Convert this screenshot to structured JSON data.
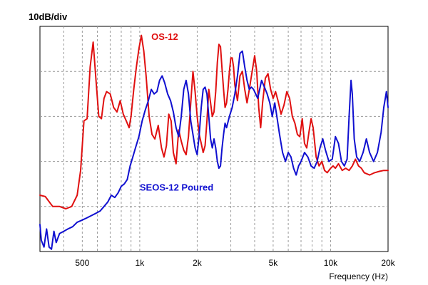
{
  "chart_data": {
    "type": "line",
    "scale_label": "10dB/div",
    "xlabel": "Frequency (Hz)",
    "ylabel": "",
    "x_scale": "log",
    "xlim": [
      300,
      20000
    ],
    "ylim": [
      0,
      5
    ],
    "y_units": "divisions (10 dB each)",
    "grid": true,
    "x_ticks": [
      {
        "value": 500,
        "label": "500"
      },
      {
        "value": 1000,
        "label": "1k"
      },
      {
        "value": 2000,
        "label": "2k"
      },
      {
        "value": 5000,
        "label": "5k"
      },
      {
        "value": 10000,
        "label": "10k"
      },
      {
        "value": 20000,
        "label": "20k"
      }
    ],
    "x_minor_grid": [
      400,
      600,
      700,
      800,
      900,
      3000,
      4000,
      6000,
      7000,
      8000,
      9000
    ],
    "series": [
      {
        "name": "OS-12",
        "color": "#e01010",
        "points": [
          [
            300,
            1.25
          ],
          [
            320,
            1.22
          ],
          [
            350,
            1.0
          ],
          [
            380,
            1.0
          ],
          [
            410,
            0.95
          ],
          [
            440,
            1.0
          ],
          [
            470,
            1.25
          ],
          [
            490,
            1.8
          ],
          [
            510,
            2.9
          ],
          [
            530,
            2.95
          ],
          [
            550,
            4.1
          ],
          [
            570,
            4.65
          ],
          [
            590,
            3.8
          ],
          [
            610,
            3.0
          ],
          [
            630,
            2.95
          ],
          [
            650,
            3.4
          ],
          [
            670,
            3.55
          ],
          [
            700,
            3.5
          ],
          [
            730,
            3.2
          ],
          [
            760,
            3.1
          ],
          [
            790,
            3.35
          ],
          [
            820,
            3.05
          ],
          [
            850,
            2.9
          ],
          [
            880,
            2.75
          ],
          [
            900,
            3.0
          ],
          [
            930,
            3.6
          ],
          [
            960,
            4.1
          ],
          [
            990,
            4.5
          ],
          [
            1020,
            4.8
          ],
          [
            1050,
            4.45
          ],
          [
            1080,
            3.9
          ],
          [
            1120,
            3.0
          ],
          [
            1160,
            2.6
          ],
          [
            1200,
            2.5
          ],
          [
            1250,
            2.8
          ],
          [
            1300,
            2.3
          ],
          [
            1340,
            2.1
          ],
          [
            1380,
            2.35
          ],
          [
            1420,
            3.05
          ],
          [
            1460,
            2.9
          ],
          [
            1500,
            2.2
          ],
          [
            1550,
            1.95
          ],
          [
            1600,
            2.7
          ],
          [
            1650,
            2.45
          ],
          [
            1700,
            2.25
          ],
          [
            1750,
            2.15
          ],
          [
            1800,
            2.55
          ],
          [
            1850,
            3.3
          ],
          [
            1900,
            4.0
          ],
          [
            1950,
            3.55
          ],
          [
            2000,
            3.0
          ],
          [
            2050,
            2.6
          ],
          [
            2100,
            2.4
          ],
          [
            2150,
            2.2
          ],
          [
            2200,
            2.35
          ],
          [
            2250,
            2.9
          ],
          [
            2300,
            3.6
          ],
          [
            2350,
            3.3
          ],
          [
            2400,
            3.0
          ],
          [
            2450,
            3.1
          ],
          [
            2500,
            3.55
          ],
          [
            2550,
            4.2
          ],
          [
            2600,
            4.6
          ],
          [
            2650,
            4.55
          ],
          [
            2700,
            4.05
          ],
          [
            2750,
            3.6
          ],
          [
            2800,
            3.2
          ],
          [
            2850,
            3.3
          ],
          [
            2900,
            3.6
          ],
          [
            2950,
            4.0
          ],
          [
            3000,
            4.3
          ],
          [
            3050,
            4.3
          ],
          [
            3100,
            4.1
          ],
          [
            3150,
            3.7
          ],
          [
            3250,
            3.35
          ],
          [
            3350,
            3.9
          ],
          [
            3450,
            4.0
          ],
          [
            3550,
            3.6
          ],
          [
            3650,
            3.3
          ],
          [
            3750,
            3.6
          ],
          [
            3900,
            4.05
          ],
          [
            4000,
            4.35
          ],
          [
            4100,
            4.0
          ],
          [
            4200,
            3.2
          ],
          [
            4300,
            2.75
          ],
          [
            4400,
            3.3
          ],
          [
            4550,
            3.85
          ],
          [
            4700,
            3.95
          ],
          [
            4850,
            3.6
          ],
          [
            5000,
            3.4
          ],
          [
            5150,
            3.55
          ],
          [
            5300,
            3.35
          ],
          [
            5500,
            3.05
          ],
          [
            5700,
            3.25
          ],
          [
            5900,
            3.55
          ],
          [
            6100,
            3.4
          ],
          [
            6300,
            3.0
          ],
          [
            6500,
            2.85
          ],
          [
            6700,
            2.6
          ],
          [
            6900,
            2.55
          ],
          [
            7100,
            2.95
          ],
          [
            7300,
            2.4
          ],
          [
            7500,
            2.3
          ],
          [
            7700,
            2.65
          ],
          [
            7900,
            2.95
          ],
          [
            8100,
            2.75
          ],
          [
            8400,
            2.1
          ],
          [
            8700,
            1.9
          ],
          [
            9000,
            2.0
          ],
          [
            9300,
            1.8
          ],
          [
            9600,
            1.75
          ],
          [
            10000,
            1.85
          ],
          [
            10300,
            1.9
          ],
          [
            10600,
            1.85
          ],
          [
            11000,
            1.95
          ],
          [
            11500,
            1.8
          ],
          [
            12000,
            1.85
          ],
          [
            12500,
            1.8
          ],
          [
            13000,
            1.9
          ],
          [
            13500,
            2.05
          ],
          [
            14000,
            1.9
          ],
          [
            14500,
            1.85
          ],
          [
            15000,
            1.75
          ],
          [
            16000,
            1.7
          ],
          [
            17000,
            1.75
          ],
          [
            18000,
            1.78
          ],
          [
            19000,
            1.8
          ],
          [
            20000,
            1.8
          ]
        ]
      },
      {
        "name": "SEOS-12 Poured",
        "color": "#1010d0",
        "points": [
          [
            300,
            0.6
          ],
          [
            305,
            0.25
          ],
          [
            315,
            0.1
          ],
          [
            325,
            0.5
          ],
          [
            335,
            0.1
          ],
          [
            345,
            0.05
          ],
          [
            355,
            0.45
          ],
          [
            365,
            0.2
          ],
          [
            380,
            0.4
          ],
          [
            400,
            0.45
          ],
          [
            420,
            0.5
          ],
          [
            445,
            0.55
          ],
          [
            470,
            0.65
          ],
          [
            500,
            0.7
          ],
          [
            530,
            0.75
          ],
          [
            560,
            0.8
          ],
          [
            590,
            0.85
          ],
          [
            620,
            0.9
          ],
          [
            650,
            1.0
          ],
          [
            680,
            1.1
          ],
          [
            710,
            1.25
          ],
          [
            740,
            1.2
          ],
          [
            770,
            1.3
          ],
          [
            800,
            1.45
          ],
          [
            830,
            1.5
          ],
          [
            860,
            1.6
          ],
          [
            890,
            1.9
          ],
          [
            920,
            2.1
          ],
          [
            950,
            2.3
          ],
          [
            990,
            2.55
          ],
          [
            1030,
            2.9
          ],
          [
            1070,
            3.15
          ],
          [
            1110,
            3.35
          ],
          [
            1150,
            3.6
          ],
          [
            1190,
            3.5
          ],
          [
            1230,
            3.55
          ],
          [
            1270,
            3.8
          ],
          [
            1310,
            3.9
          ],
          [
            1350,
            3.75
          ],
          [
            1400,
            3.5
          ],
          [
            1450,
            3.35
          ],
          [
            1500,
            3.1
          ],
          [
            1550,
            2.75
          ],
          [
            1600,
            2.55
          ],
          [
            1650,
            3.0
          ],
          [
            1700,
            3.6
          ],
          [
            1750,
            3.8
          ],
          [
            1800,
            3.5
          ],
          [
            1850,
            2.9
          ],
          [
            1900,
            2.6
          ],
          [
            1950,
            2.3
          ],
          [
            2000,
            2.15
          ],
          [
            2050,
            2.6
          ],
          [
            2100,
            3.2
          ],
          [
            2150,
            3.6
          ],
          [
            2200,
            3.65
          ],
          [
            2250,
            3.5
          ],
          [
            2300,
            3.0
          ],
          [
            2350,
            2.5
          ],
          [
            2400,
            2.3
          ],
          [
            2450,
            2.5
          ],
          [
            2500,
            2.3
          ],
          [
            2550,
            2.0
          ],
          [
            2600,
            1.85
          ],
          [
            2650,
            1.9
          ],
          [
            2700,
            2.3
          ],
          [
            2750,
            2.6
          ],
          [
            2800,
            2.85
          ],
          [
            2850,
            2.75
          ],
          [
            2950,
            3.0
          ],
          [
            3050,
            3.2
          ],
          [
            3150,
            3.5
          ],
          [
            3250,
            3.9
          ],
          [
            3350,
            4.4
          ],
          [
            3450,
            4.45
          ],
          [
            3550,
            4.1
          ],
          [
            3650,
            3.8
          ],
          [
            3750,
            3.6
          ],
          [
            3850,
            3.65
          ],
          [
            3950,
            3.6
          ],
          [
            4050,
            3.5
          ],
          [
            4150,
            3.4
          ],
          [
            4250,
            3.6
          ],
          [
            4350,
            3.8
          ],
          [
            4500,
            3.65
          ],
          [
            4650,
            3.5
          ],
          [
            4800,
            3.3
          ],
          [
            4950,
            3.0
          ],
          [
            5100,
            3.3
          ],
          [
            5250,
            2.95
          ],
          [
            5400,
            2.6
          ],
          [
            5600,
            2.2
          ],
          [
            5800,
            2.0
          ],
          [
            6000,
            2.2
          ],
          [
            6200,
            2.1
          ],
          [
            6400,
            1.85
          ],
          [
            6600,
            1.7
          ],
          [
            6800,
            1.9
          ],
          [
            7000,
            2.0
          ],
          [
            7300,
            2.2
          ],
          [
            7600,
            2.1
          ],
          [
            7900,
            1.9
          ],
          [
            8200,
            1.85
          ],
          [
            8500,
            2.0
          ],
          [
            8800,
            2.3
          ],
          [
            9100,
            2.5
          ],
          [
            9400,
            2.25
          ],
          [
            9800,
            2.0
          ],
          [
            10200,
            2.05
          ],
          [
            10600,
            2.55
          ],
          [
            11000,
            2.4
          ],
          [
            11400,
            2.0
          ],
          [
            11800,
            1.9
          ],
          [
            12200,
            2.05
          ],
          [
            12500,
            3.0
          ],
          [
            12800,
            3.8
          ],
          [
            13000,
            3.5
          ],
          [
            13300,
            2.5
          ],
          [
            13700,
            2.1
          ],
          [
            14200,
            2.0
          ],
          [
            14800,
            2.2
          ],
          [
            15400,
            2.5
          ],
          [
            16000,
            2.2
          ],
          [
            16800,
            2.0
          ],
          [
            17600,
            2.2
          ],
          [
            18400,
            2.65
          ],
          [
            19000,
            3.2
          ],
          [
            19600,
            3.55
          ],
          [
            20000,
            3.2
          ]
        ]
      }
    ],
    "annotations": [
      {
        "text": "OS-12",
        "series": 0,
        "x": 1150,
        "y": 4.7
      },
      {
        "text": "SEOS-12 Poured",
        "series": 1,
        "x": 1000,
        "y": 1.35
      }
    ]
  }
}
